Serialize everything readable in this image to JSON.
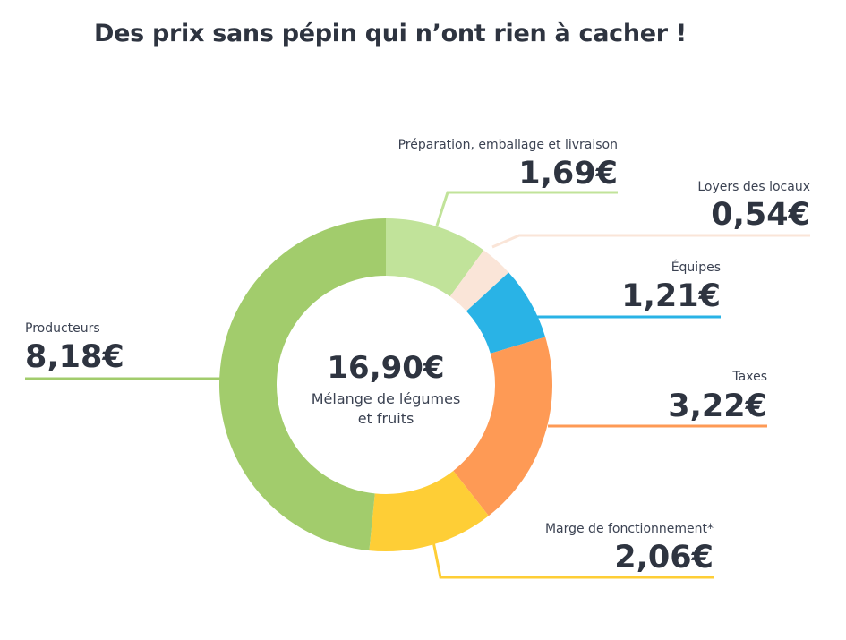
{
  "title": "Des prix sans pépin qui n’ont rien à cacher !",
  "chart_data": {
    "type": "pie",
    "variant": "donut",
    "total": 16.9,
    "total_label": "16,90€",
    "center_text": [
      "Mélange de légumes",
      "et fruits"
    ],
    "slices": [
      {
        "label": "Préparation, emballage et livraison",
        "value": 1.69,
        "value_label": "1,69€",
        "color": "#c1e39a"
      },
      {
        "label": "Loyers des locaux",
        "value": 0.54,
        "value_label": "0,54€",
        "color": "#fae5d8"
      },
      {
        "label": "Équipes",
        "value": 1.21,
        "value_label": "1,21€",
        "color": "#29b3e6"
      },
      {
        "label": "Taxes",
        "value": 3.22,
        "value_label": "3,22€",
        "color": "#fe9a55"
      },
      {
        "label": "Marge de fonctionnement*",
        "value": 2.06,
        "value_label": "2,06€",
        "color": "#fece36"
      },
      {
        "label": "Producteurs",
        "value": 8.18,
        "value_label": "8,18€",
        "color": "#a2cc6c"
      }
    ]
  }
}
